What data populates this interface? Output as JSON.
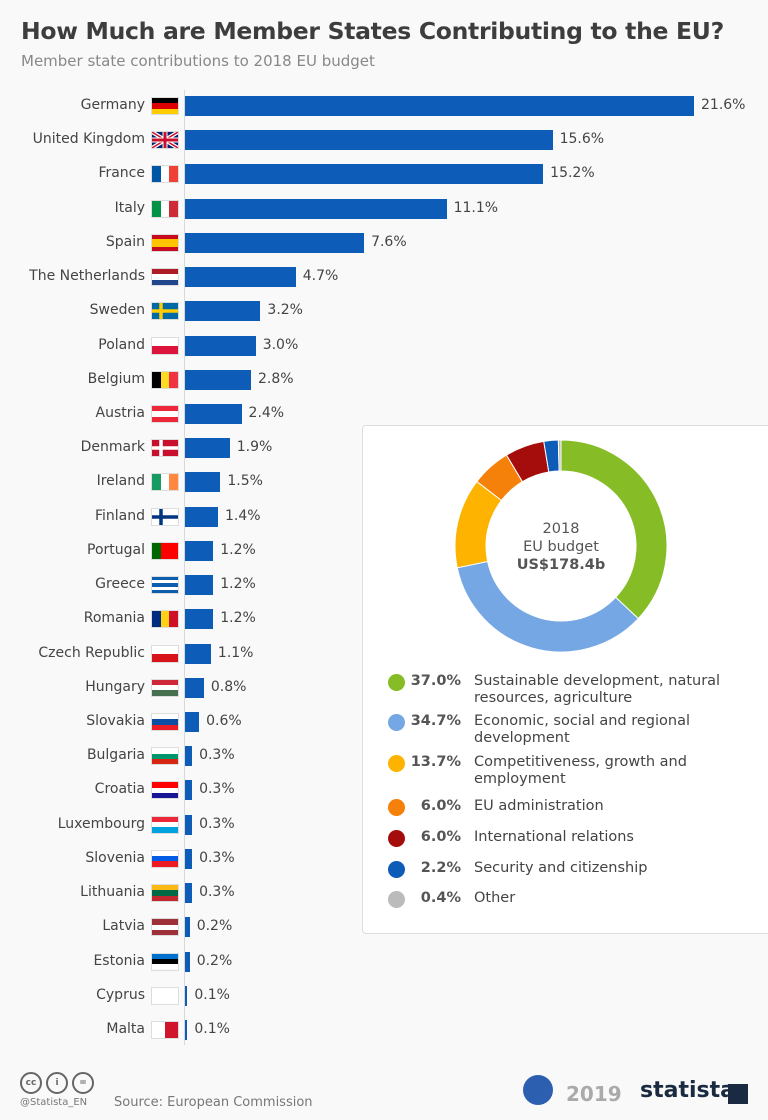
{
  "header": {
    "title": "How Much are Member States Contributing to the EU?",
    "subtitle": "Member state contributions to 2018 EU budget"
  },
  "chart_data": [
    {
      "type": "bar",
      "orientation": "horizontal",
      "xlim": [
        0,
        21.6
      ],
      "categories": [
        "Germany",
        "United Kingdom",
        "France",
        "Italy",
        "Spain",
        "The Netherlands",
        "Sweden",
        "Poland",
        "Belgium",
        "Austria",
        "Denmark",
        "Ireland",
        "Finland",
        "Portugal",
        "Greece",
        "Romania",
        "Czech Republic",
        "Hungary",
        "Slovakia",
        "Bulgaria",
        "Croatia",
        "Luxembourg",
        "Slovenia",
        "Lithuania",
        "Latvia",
        "Estonia",
        "Cyprus",
        "Malta"
      ],
      "values": [
        21.6,
        15.6,
        15.2,
        11.1,
        7.6,
        4.7,
        3.2,
        3.0,
        2.8,
        2.4,
        1.9,
        1.5,
        1.4,
        1.2,
        1.2,
        1.2,
        1.1,
        0.8,
        0.6,
        0.3,
        0.3,
        0.3,
        0.3,
        0.3,
        0.2,
        0.2,
        0.1,
        0.1
      ],
      "labels": [
        "21.6%",
        "15.6%",
        "15.2%",
        "11.1%",
        "7.6%",
        "4.7%",
        "3.2%",
        "3.0%",
        "2.8%",
        "2.4%",
        "1.9%",
        "1.5%",
        "1.4%",
        "1.2%",
        "1.2%",
        "1.2%",
        "1.1%",
        "0.8%",
        "0.6%",
        "0.3%",
        "0.3%",
        "0.3%",
        "0.3%",
        "0.3%",
        "0.2%",
        "0.2%",
        "0.1%",
        "0.1%"
      ],
      "color": "#0d5db8",
      "flags": [
        [
          "h",
          "#000",
          "#d00",
          "#fc0"
        ],
        [
          "uk"
        ],
        [
          "v",
          "#0055a4",
          "#fff",
          "#ef4135"
        ],
        [
          "v",
          "#009246",
          "#fff",
          "#ce2b37"
        ],
        [
          "h",
          "#c60b1e",
          "#ffc400",
          "#ffc400",
          "#c60b1e"
        ],
        [
          "h",
          "#ae1c28",
          "#fff",
          "#21468b"
        ],
        [
          "nordic",
          "#006aa7",
          "#fecc00"
        ],
        [
          "h",
          "#fff",
          "#dc143c"
        ],
        [
          "v",
          "#000",
          "#fdda24",
          "#ef3340"
        ],
        [
          "h",
          "#ed2939",
          "#fff",
          "#ed2939"
        ],
        [
          "nordic",
          "#c8102e",
          "#fff"
        ],
        [
          "v",
          "#169b62",
          "#fff",
          "#ff883e"
        ],
        [
          "nordic",
          "#fff",
          "#003580"
        ],
        [
          "v",
          "#006600",
          "#ff0000",
          "#ff0000"
        ],
        [
          "h",
          "#0d5eaf",
          "#fff",
          "#0d5eaf",
          "#fff",
          "#0d5eaf"
        ],
        [
          "v",
          "#002b7f",
          "#fcd116",
          "#ce1126"
        ],
        [
          "h",
          "#fff",
          "#d7141a"
        ],
        [
          "h",
          "#ce2939",
          "#fff",
          "#477050"
        ],
        [
          "h",
          "#fff",
          "#0b4ea2",
          "#ee1c25"
        ],
        [
          "h",
          "#fff",
          "#00966e",
          "#d62612"
        ],
        [
          "h",
          "#ff0000",
          "#fff",
          "#171796"
        ],
        [
          "h",
          "#ed2939",
          "#fff",
          "#00a1de"
        ],
        [
          "h",
          "#fff",
          "#005ce5",
          "#ed1c24"
        ],
        [
          "h",
          "#fdb913",
          "#006a44",
          "#c1272d"
        ],
        [
          "h",
          "#9e3039",
          "#fff",
          "#9e3039"
        ],
        [
          "h",
          "#0072ce",
          "#000",
          "#fff"
        ],
        [
          "h",
          "#fff"
        ],
        [
          "v",
          "#fff",
          "#cf142b"
        ]
      ]
    },
    {
      "type": "pie",
      "donut": true,
      "center_label": [
        "2018",
        "EU budget",
        "US$178.4b"
      ],
      "slices": [
        {
          "pct": "37.0%",
          "value": 37.0,
          "label": "Sustainable development, natural resources, agriculture",
          "color": "#86bc25"
        },
        {
          "pct": "34.7%",
          "value": 34.7,
          "label": "Economic, social and regional development",
          "color": "#74a7e3"
        },
        {
          "pct": "13.7%",
          "value": 13.7,
          "label": "Competitiveness, growth and employment",
          "color": "#fdb300"
        },
        {
          "pct": "6.0%",
          "value": 6.0,
          "label": "EU administration",
          "color": "#f5800a"
        },
        {
          "pct": "6.0%",
          "value": 6.0,
          "label": "International relations",
          "color": "#a50d0d"
        },
        {
          "pct": "2.2%",
          "value": 2.2,
          "label": "Security and citizenship",
          "color": "#0d5db8"
        },
        {
          "pct": "0.4%",
          "value": 0.4,
          "label": "Other",
          "color": "#bbbbbb"
        }
      ]
    }
  ],
  "footer": {
    "handle": "@Statista_EN",
    "source": "Source: European Commission",
    "year": "2019",
    "brand": "statista"
  }
}
